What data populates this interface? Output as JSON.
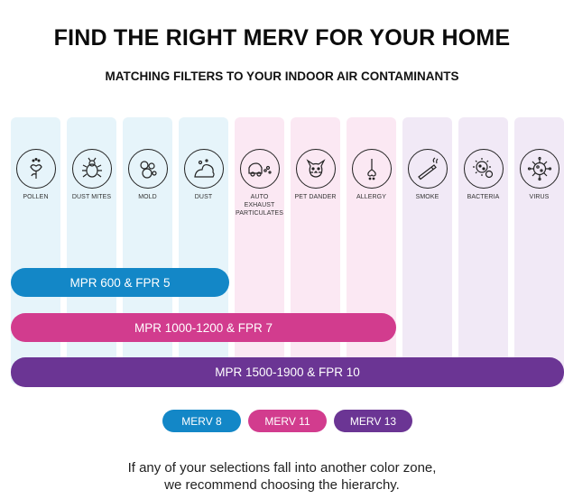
{
  "title": "FIND THE RIGHT MERV FOR YOUR HOME",
  "subtitle": "MATCHING FILTERS TO YOUR INDOOR AIR CONTAMINANTS",
  "contaminants": [
    {
      "label": "POLLEN",
      "icon": "pollen-icon",
      "zone": "blue"
    },
    {
      "label": "DUST MITES",
      "icon": "dust-mite-icon",
      "zone": "blue"
    },
    {
      "label": "MOLD",
      "icon": "mold-icon",
      "zone": "blue"
    },
    {
      "label": "DUST",
      "icon": "dust-icon",
      "zone": "blue"
    },
    {
      "label": "AUTO EXHAUST PARTICULATES",
      "icon": "auto-exhaust-icon",
      "zone": "pink"
    },
    {
      "label": "PET DANDER",
      "icon": "pet-dander-icon",
      "zone": "pink"
    },
    {
      "label": "ALLERGY",
      "icon": "allergy-icon",
      "zone": "pink"
    },
    {
      "label": "SMOKE",
      "icon": "smoke-icon",
      "zone": "purple"
    },
    {
      "label": "BACTERIA",
      "icon": "bacteria-icon",
      "zone": "purple"
    },
    {
      "label": "VIRUS",
      "icon": "virus-icon",
      "zone": "purple"
    }
  ],
  "bars": {
    "bar1": "MPR 600 & FPR 5",
    "bar2": "MPR 1000-1200 & FPR 7",
    "bar3": "MPR 1500-1900 & FPR 10"
  },
  "legend": {
    "merv8": "MERV 8",
    "merv11": "MERV 11",
    "merv13": "MERV 13"
  },
  "note": {
    "line1": "If any of your selections fall into another color zone,",
    "line2": "we recommend choosing the hierarchy."
  },
  "colors": {
    "blue": "#1387c7",
    "pink": "#d23c8e",
    "purple": "#6b3594",
    "blue_zone": "#e6f4fa",
    "pink_zone": "#fbe8f3",
    "purple_zone": "#f1e9f6"
  }
}
